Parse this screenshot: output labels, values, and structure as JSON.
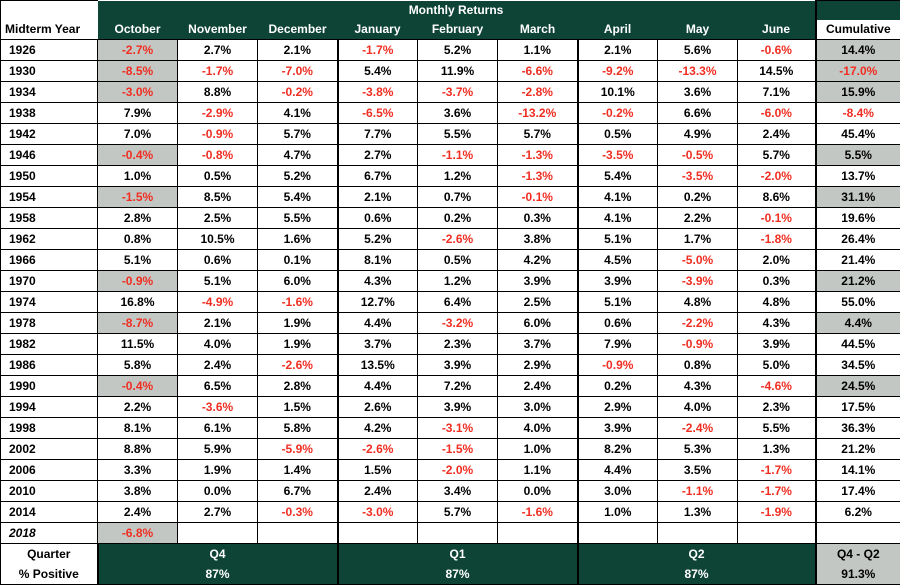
{
  "header": {
    "monthly_returns": "Monthly Returns",
    "year_col": "Midterm Year",
    "cumulative_col": "Cumulative",
    "months": [
      "October",
      "November",
      "December",
      "January",
      "February",
      "March",
      "April",
      "May",
      "June"
    ]
  },
  "rows": [
    {
      "year": "1926",
      "vals": [
        "-2.7%",
        "2.7%",
        "2.1%",
        "-1.7%",
        "5.2%",
        "1.1%",
        "2.1%",
        "5.6%",
        "-0.6%"
      ],
      "cum": "14.4%",
      "hl_oct": true,
      "hl_cum": true
    },
    {
      "year": "1930",
      "vals": [
        "-8.5%",
        "-1.7%",
        "-7.0%",
        "5.4%",
        "11.9%",
        "-6.6%",
        "-9.2%",
        "-13.3%",
        "14.5%"
      ],
      "cum": "-17.0%",
      "hl_oct": true,
      "hl_cum": true
    },
    {
      "year": "1934",
      "vals": [
        "-3.0%",
        "8.8%",
        "-0.2%",
        "-3.8%",
        "-3.7%",
        "-2.8%",
        "10.1%",
        "3.6%",
        "7.1%"
      ],
      "cum": "15.9%",
      "hl_oct": true,
      "hl_cum": true
    },
    {
      "year": "1938",
      "vals": [
        "7.9%",
        "-2.9%",
        "4.1%",
        "-6.5%",
        "3.6%",
        "-13.2%",
        "-0.2%",
        "6.6%",
        "-6.0%"
      ],
      "cum": "-8.4%",
      "hl_oct": false,
      "hl_cum": false
    },
    {
      "year": "1942",
      "vals": [
        "7.0%",
        "-0.9%",
        "5.7%",
        "7.7%",
        "5.5%",
        "5.7%",
        "0.5%",
        "4.9%",
        "2.4%"
      ],
      "cum": "45.4%",
      "hl_oct": false,
      "hl_cum": false
    },
    {
      "year": "1946",
      "vals": [
        "-0.4%",
        "-0.8%",
        "4.7%",
        "2.7%",
        "-1.1%",
        "-1.3%",
        "-3.5%",
        "-0.5%",
        "5.7%"
      ],
      "cum": "5.5%",
      "hl_oct": true,
      "hl_cum": true
    },
    {
      "year": "1950",
      "vals": [
        "1.0%",
        "0.5%",
        "5.2%",
        "6.7%",
        "1.2%",
        "-1.3%",
        "5.4%",
        "-3.5%",
        "-2.0%"
      ],
      "cum": "13.7%",
      "hl_oct": false,
      "hl_cum": false
    },
    {
      "year": "1954",
      "vals": [
        "-1.5%",
        "8.5%",
        "5.4%",
        "2.1%",
        "0.7%",
        "-0.1%",
        "4.1%",
        "0.2%",
        "8.6%"
      ],
      "cum": "31.1%",
      "hl_oct": true,
      "hl_cum": true
    },
    {
      "year": "1958",
      "vals": [
        "2.8%",
        "2.5%",
        "5.5%",
        "0.6%",
        "0.2%",
        "0.3%",
        "4.1%",
        "2.2%",
        "-0.1%"
      ],
      "cum": "19.6%",
      "hl_oct": false,
      "hl_cum": false
    },
    {
      "year": "1962",
      "vals": [
        "0.8%",
        "10.5%",
        "1.6%",
        "5.2%",
        "-2.6%",
        "3.8%",
        "5.1%",
        "1.7%",
        "-1.8%"
      ],
      "cum": "26.4%",
      "hl_oct": false,
      "hl_cum": false
    },
    {
      "year": "1966",
      "vals": [
        "5.1%",
        "0.6%",
        "0.1%",
        "8.1%",
        "0.5%",
        "4.2%",
        "4.5%",
        "-5.0%",
        "2.0%"
      ],
      "cum": "21.4%",
      "hl_oct": false,
      "hl_cum": false
    },
    {
      "year": "1970",
      "vals": [
        "-0.9%",
        "5.1%",
        "6.0%",
        "4.3%",
        "1.2%",
        "3.9%",
        "3.9%",
        "-3.9%",
        "0.3%"
      ],
      "cum": "21.2%",
      "hl_oct": true,
      "hl_cum": true
    },
    {
      "year": "1974",
      "vals": [
        "16.8%",
        "-4.9%",
        "-1.6%",
        "12.7%",
        "6.4%",
        "2.5%",
        "5.1%",
        "4.8%",
        "4.8%"
      ],
      "cum": "55.0%",
      "hl_oct": false,
      "hl_cum": false
    },
    {
      "year": "1978",
      "vals": [
        "-8.7%",
        "2.1%",
        "1.9%",
        "4.4%",
        "-3.2%",
        "6.0%",
        "0.6%",
        "-2.2%",
        "4.3%"
      ],
      "cum": "4.4%",
      "hl_oct": true,
      "hl_cum": true
    },
    {
      "year": "1982",
      "vals": [
        "11.5%",
        "4.0%",
        "1.9%",
        "3.7%",
        "2.3%",
        "3.7%",
        "7.9%",
        "-0.9%",
        "3.9%"
      ],
      "cum": "44.5%",
      "hl_oct": false,
      "hl_cum": false
    },
    {
      "year": "1986",
      "vals": [
        "5.8%",
        "2.4%",
        "-2.6%",
        "13.5%",
        "3.9%",
        "2.9%",
        "-0.9%",
        "0.8%",
        "5.0%"
      ],
      "cum": "34.5%",
      "hl_oct": false,
      "hl_cum": false
    },
    {
      "year": "1990",
      "vals": [
        "-0.4%",
        "6.5%",
        "2.8%",
        "4.4%",
        "7.2%",
        "2.4%",
        "0.2%",
        "4.3%",
        "-4.6%"
      ],
      "cum": "24.5%",
      "hl_oct": true,
      "hl_cum": true
    },
    {
      "year": "1994",
      "vals": [
        "2.2%",
        "-3.6%",
        "1.5%",
        "2.6%",
        "3.9%",
        "3.0%",
        "2.9%",
        "4.0%",
        "2.3%"
      ],
      "cum": "17.5%",
      "hl_oct": false,
      "hl_cum": false
    },
    {
      "year": "1998",
      "vals": [
        "8.1%",
        "6.1%",
        "5.8%",
        "4.2%",
        "-3.1%",
        "4.0%",
        "3.9%",
        "-2.4%",
        "5.5%"
      ],
      "cum": "36.3%",
      "hl_oct": false,
      "hl_cum": false
    },
    {
      "year": "2002",
      "vals": [
        "8.8%",
        "5.9%",
        "-5.9%",
        "-2.6%",
        "-1.5%",
        "1.0%",
        "8.2%",
        "5.3%",
        "1.3%"
      ],
      "cum": "21.2%",
      "hl_oct": false,
      "hl_cum": false
    },
    {
      "year": "2006",
      "vals": [
        "3.3%",
        "1.9%",
        "1.4%",
        "1.5%",
        "-2.0%",
        "1.1%",
        "4.4%",
        "3.5%",
        "-1.7%"
      ],
      "cum": "14.1%",
      "hl_oct": false,
      "hl_cum": false
    },
    {
      "year": "2010",
      "vals": [
        "3.8%",
        "0.0%",
        "6.7%",
        "2.4%",
        "3.4%",
        "0.0%",
        "3.0%",
        "-1.1%",
        "-1.7%"
      ],
      "cum": "17.4%",
      "hl_oct": false,
      "hl_cum": false
    },
    {
      "year": "2014",
      "vals": [
        "2.4%",
        "2.7%",
        "-0.3%",
        "-3.0%",
        "5.7%",
        "-1.6%",
        "1.0%",
        "1.3%",
        "-1.9%"
      ],
      "cum": "6.2%",
      "hl_oct": false,
      "hl_cum": false
    }
  ],
  "current": {
    "year": "2018",
    "oct": "-6.8%"
  },
  "footer": {
    "quarter_label": "Quarter",
    "positive_label": "% Positive",
    "q4": "Q4",
    "q1": "Q1",
    "q2": "Q2",
    "qtot": "Q4 - Q2",
    "q4_pct": "87%",
    "q1_pct": "87%",
    "q2_pct": "87%",
    "tot_pct": "91.3%"
  },
  "colors": {
    "green": "#0e4436",
    "highlight": "#c3c7c3",
    "negative": "#f02e22"
  }
}
